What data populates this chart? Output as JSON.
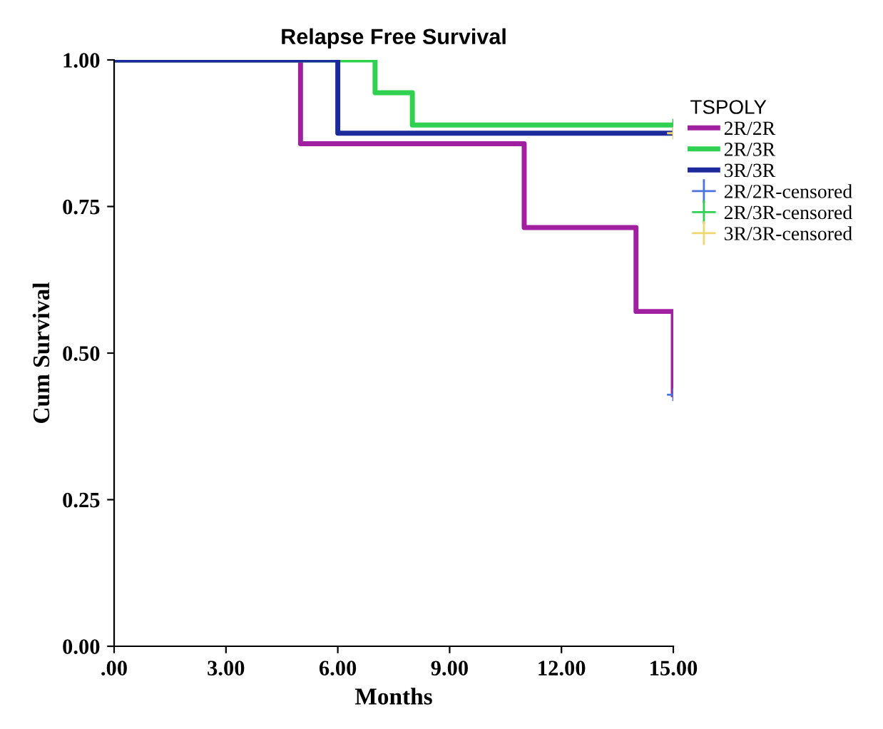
{
  "chart_data": {
    "type": "step",
    "title": "Relapse Free Survival",
    "xlabel": "Months",
    "ylabel": "Cum Survival",
    "legend_title": "TSPOLY",
    "legend": "top right",
    "grid": false,
    "xlim": [
      0,
      15
    ],
    "xticks": [
      {
        "value": 0,
        "label": ".00"
      },
      {
        "value": 3,
        "label": "3.00"
      },
      {
        "value": 6,
        "label": "6.00"
      },
      {
        "value": 9,
        "label": "9.00"
      },
      {
        "value": 12,
        "label": "12.00"
      },
      {
        "value": 15,
        "label": "15.00"
      }
    ],
    "ylim": [
      0,
      1
    ],
    "yticks": [
      {
        "value": 0,
        "label": "0.00"
      },
      {
        "value": 0.25,
        "label": "0.25"
      },
      {
        "value": 0.5,
        "label": "0.50"
      },
      {
        "value": 0.75,
        "label": "0.75"
      },
      {
        "value": 1,
        "label": "1.00"
      }
    ],
    "series": [
      {
        "name": "2R/2R",
        "color": "#a020a0",
        "x": [
          0,
          5,
          11,
          14,
          15
        ],
        "values": [
          1,
          0.857,
          0.714,
          0.571,
          0.429
        ]
      },
      {
        "name": "2R/3R",
        "color": "#30d050",
        "x": [
          0,
          7,
          8,
          15
        ],
        "values": [
          1,
          0.944,
          0.889,
          0.889
        ]
      },
      {
        "name": "3R/3R",
        "color": "#1c2a9c",
        "x": [
          0,
          6,
          15
        ],
        "values": [
          1,
          0.875,
          0.875
        ]
      },
      {
        "name": "2R/2R-censored",
        "type": "scatter",
        "marker": "cross",
        "color": "#4a72e0",
        "x": [
          15
        ],
        "values": [
          0.429
        ]
      },
      {
        "name": "2R/3R-censored",
        "type": "scatter",
        "marker": "cross",
        "color": "#30d050",
        "x": [
          15
        ],
        "values": [
          0.889
        ]
      },
      {
        "name": "3R/3R-censored",
        "type": "scatter",
        "marker": "cross",
        "color": "#f0d870",
        "x": [
          15
        ],
        "values": [
          0.875
        ]
      }
    ]
  }
}
